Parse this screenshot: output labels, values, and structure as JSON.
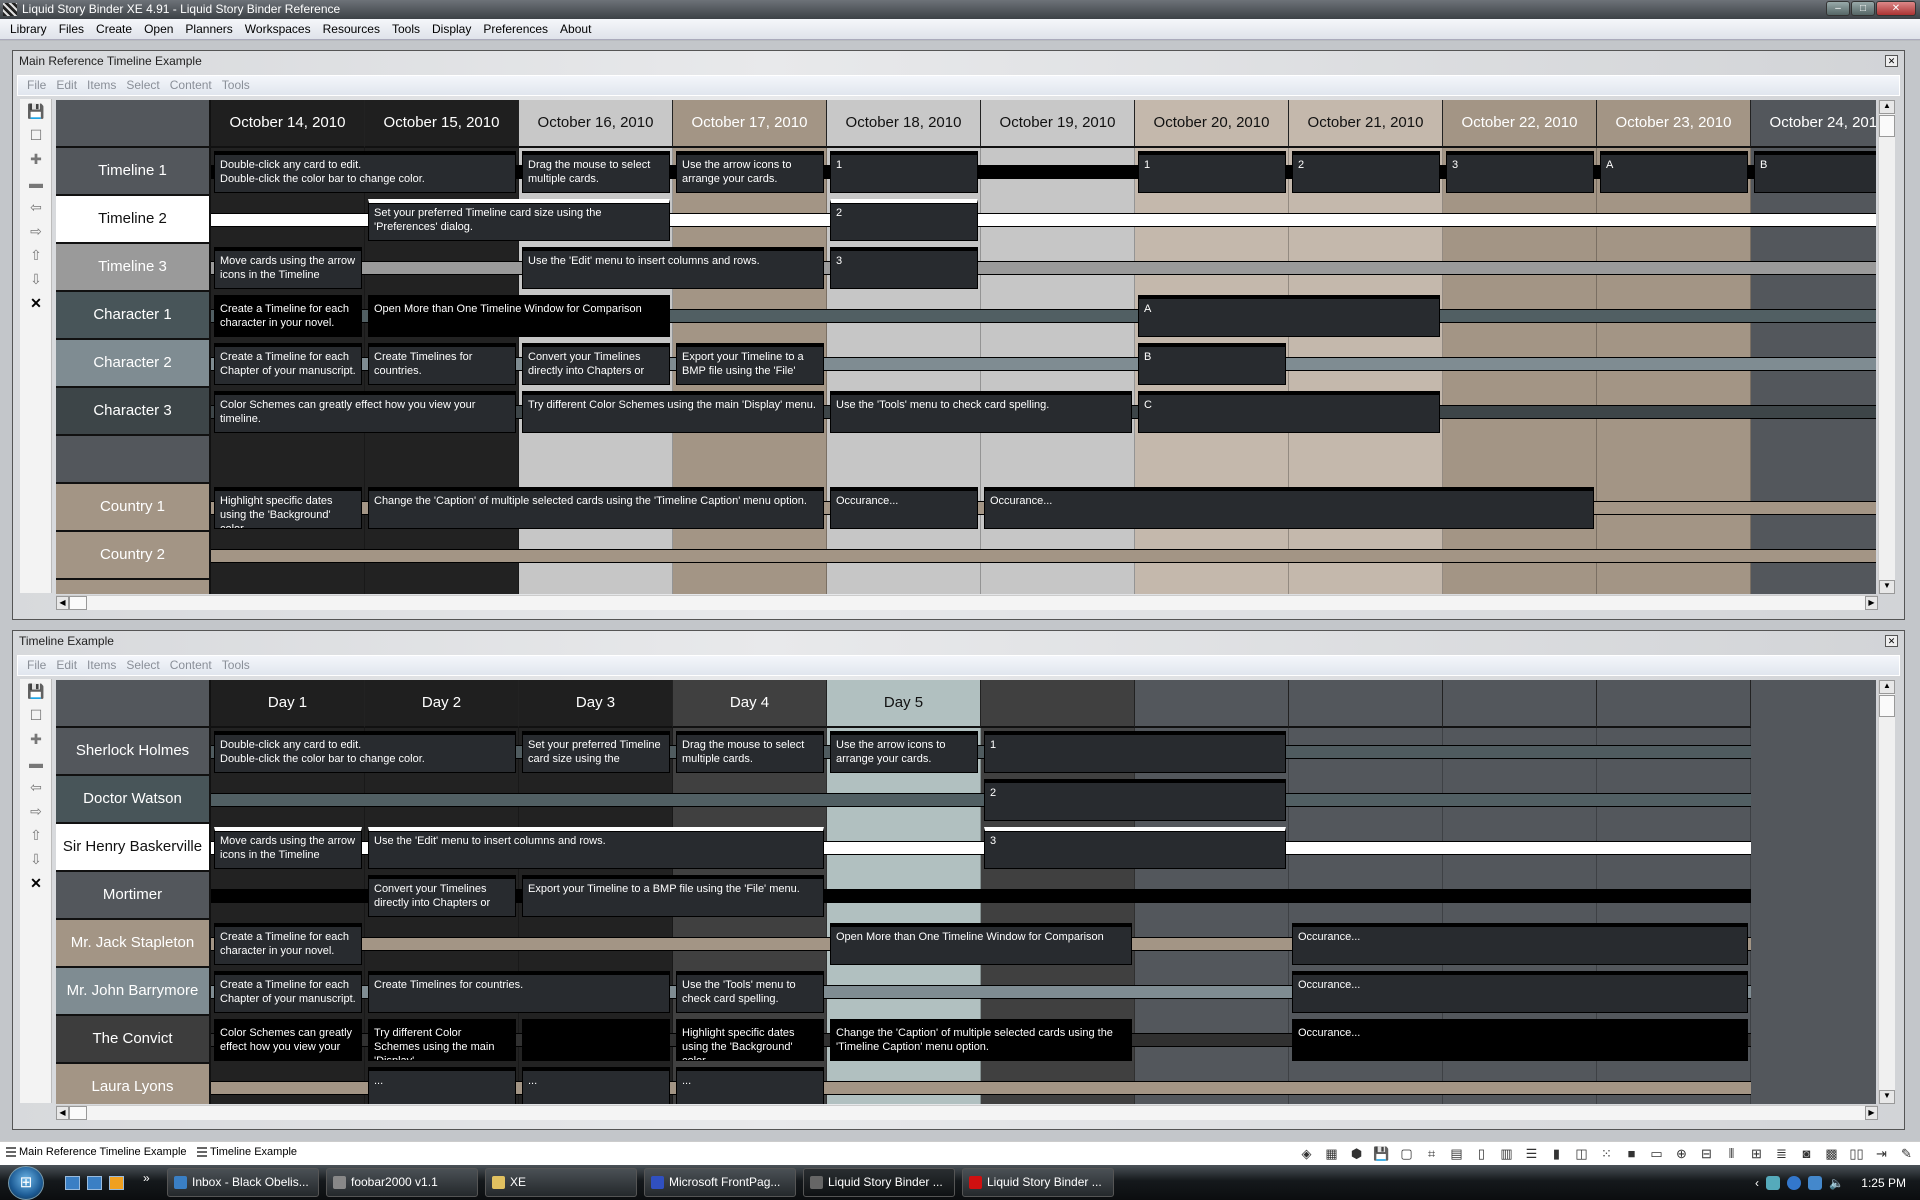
{
  "app": {
    "title": "Liquid Story Binder XE 4.91 - Liquid Story Binder Reference",
    "window_buttons": [
      "minimize",
      "maximize",
      "close"
    ]
  },
  "menubar": [
    "Library",
    "Files",
    "Create",
    "Open",
    "Planners",
    "Workspaces",
    "Resources",
    "Tools",
    "Display",
    "Preferences",
    "About"
  ],
  "toolbar_icons": [
    {
      "name": "save-icon",
      "glyph": "💾"
    },
    {
      "name": "new-card-icon",
      "glyph": "☐"
    },
    {
      "name": "add-row-icon",
      "glyph": "✚"
    },
    {
      "name": "remove-row-icon",
      "glyph": "▬"
    },
    {
      "name": "arrow-left-icon",
      "glyph": "⇦"
    },
    {
      "name": "arrow-right-icon",
      "glyph": "⇨"
    },
    {
      "name": "arrow-up-icon",
      "glyph": "⇧"
    },
    {
      "name": "arrow-down-icon",
      "glyph": "⇩"
    },
    {
      "name": "delete-icon",
      "glyph": "✕"
    }
  ],
  "windows": [
    {
      "title": "Main Reference Timeline Example",
      "menu": [
        "File",
        "Edit",
        "Items",
        "Select",
        "Content",
        "Tools"
      ],
      "columns": [
        {
          "label": "October 14, 2010",
          "bg": "#1f1f1f",
          "body": "#222222",
          "fg": "#ffffff"
        },
        {
          "label": "October 15, 2010",
          "bg": "#1f1f1f",
          "body": "#222222",
          "fg": "#ffffff"
        },
        {
          "label": "October 16, 2010",
          "bg": "#c8c8c8",
          "body": "#c6c6c6",
          "fg": "#111111"
        },
        {
          "label": "October 17, 2010",
          "bg": "#a39585",
          "body": "#a39585",
          "fg": "#ffffff"
        },
        {
          "label": "October 18, 2010",
          "bg": "#c8c8c8",
          "body": "#c6c6c6",
          "fg": "#111111"
        },
        {
          "label": "October 19, 2010",
          "bg": "#c8c8c8",
          "body": "#c6c6c6",
          "fg": "#111111"
        },
        {
          "label": "October 20, 2010",
          "bg": "#c4b8ac",
          "body": "#c4b8ac",
          "fg": "#111111"
        },
        {
          "label": "October 21, 2010",
          "bg": "#c4b8ac",
          "body": "#c4b8ac",
          "fg": "#111111"
        },
        {
          "label": "October 22, 2010",
          "bg": "#a39585",
          "body": "#a39585",
          "fg": "#ffffff"
        },
        {
          "label": "October 23, 2010",
          "bg": "#a39585",
          "body": "#a39585",
          "fg": "#ffffff"
        },
        {
          "label": "October 24, 2010",
          "bg": "#53575c",
          "body": "#53575c",
          "fg": "#ffffff"
        }
      ],
      "rows": [
        {
          "label": "Timeline 1",
          "bg": "#53575c",
          "fg": "#ffffff",
          "bar": "#000000"
        },
        {
          "label": "Timeline 2",
          "bg": "#ffffff",
          "fg": "#111111",
          "bar": "#ffffff"
        },
        {
          "label": "Timeline 3",
          "bg": "#9a9a9a",
          "fg": "#ffffff",
          "bar": "#9a9a9a"
        },
        {
          "label": "Character 1",
          "bg": "#485559",
          "fg": "#ffffff",
          "bar": "#515f63"
        },
        {
          "label": "Character 2",
          "bg": "#7f8c92",
          "fg": "#ffffff",
          "bar": "#7f8c92"
        },
        {
          "label": "Character 3",
          "bg": "#3d4548",
          "fg": "#ffffff",
          "bar": "#3d4548"
        },
        {
          "label": "",
          "bg": "#53575c",
          "fg": "#ffffff",
          "bar": ""
        },
        {
          "label": "Country 1",
          "bg": "#a39585",
          "fg": "#ffffff",
          "bar": "#a39585"
        },
        {
          "label": "Country 2",
          "bg": "#a39585",
          "fg": "#ffffff",
          "bar": "#a39585"
        },
        {
          "label": "",
          "bg": "#a39585",
          "fg": "#ffffff",
          "bar": ""
        }
      ],
      "cards": [
        {
          "row": 0,
          "col": 0,
          "span": 2,
          "text": "Double-click any card to edit.\nDouble-click the color bar to change color."
        },
        {
          "row": 0,
          "col": 2,
          "span": 1,
          "text": "Drag the mouse to select multiple cards."
        },
        {
          "row": 0,
          "col": 3,
          "span": 1,
          "text": "Use the arrow icons to arrange your cards."
        },
        {
          "row": 0,
          "col": 4,
          "span": 1,
          "text": "1"
        },
        {
          "row": 0,
          "col": 6,
          "span": 1,
          "text": "1"
        },
        {
          "row": 0,
          "col": 7,
          "span": 1,
          "text": "2"
        },
        {
          "row": 0,
          "col": 8,
          "span": 1,
          "text": "3"
        },
        {
          "row": 0,
          "col": 9,
          "span": 1,
          "text": "A"
        },
        {
          "row": 0,
          "col": 10,
          "span": 1,
          "text": "B"
        },
        {
          "row": 1,
          "col": 1,
          "span": 2,
          "text": "Set your preferred Timeline card size using the 'Preferences' dialog."
        },
        {
          "row": 1,
          "col": 4,
          "span": 1,
          "text": "2"
        },
        {
          "row": 2,
          "col": 0,
          "span": 1,
          "text": "Move cards using the arrow icons in the Timeline"
        },
        {
          "row": 2,
          "col": 2,
          "span": 2,
          "text": "Use the 'Edit' menu to insert columns and rows."
        },
        {
          "row": 2,
          "col": 4,
          "span": 1,
          "text": "3"
        },
        {
          "row": 3,
          "col": 0,
          "span": 1,
          "text": "Create a Timeline for each character in your novel.",
          "black": true
        },
        {
          "row": 3,
          "col": 1,
          "span": 2,
          "text": "Open More than One Timeline Window for Comparison",
          "black": true
        },
        {
          "row": 3,
          "col": 6,
          "span": 2,
          "text": "A"
        },
        {
          "row": 4,
          "col": 0,
          "span": 1,
          "text": "Create a Timeline for each Chapter of your manuscript."
        },
        {
          "row": 4,
          "col": 1,
          "span": 1,
          "text": "Create Timelines for countries."
        },
        {
          "row": 4,
          "col": 2,
          "span": 1,
          "text": "Convert your Timelines directly into Chapters or"
        },
        {
          "row": 4,
          "col": 3,
          "span": 1,
          "text": "Export your Timeline to a BMP file using the 'File'"
        },
        {
          "row": 4,
          "col": 6,
          "span": 1,
          "text": "B"
        },
        {
          "row": 5,
          "col": 0,
          "span": 2,
          "text": "Color Schemes can greatly effect how you view your timeline."
        },
        {
          "row": 5,
          "col": 2,
          "span": 2,
          "text": "Try different Color Schemes using the main 'Display' menu."
        },
        {
          "row": 5,
          "col": 4,
          "span": 2,
          "text": "Use the 'Tools' menu to check card spelling."
        },
        {
          "row": 5,
          "col": 6,
          "span": 2,
          "text": "C"
        },
        {
          "row": 7,
          "col": 0,
          "span": 1,
          "text": "Highlight specific dates using the 'Background' color"
        },
        {
          "row": 7,
          "col": 1,
          "span": 3,
          "text": "Change the 'Caption' of multiple selected cards using the 'Timeline Caption' menu option."
        },
        {
          "row": 7,
          "col": 4,
          "span": 1,
          "text": "Occurance..."
        },
        {
          "row": 7,
          "col": 5,
          "span": 4,
          "text": "Occurance..."
        }
      ]
    },
    {
      "title": "Timeline Example",
      "menu": [
        "File",
        "Edit",
        "Items",
        "Select",
        "Content",
        "Tools"
      ],
      "columns": [
        {
          "label": "Day 1",
          "bg": "#1f1f1f",
          "body": "#222222",
          "fg": "#ffffff"
        },
        {
          "label": "Day 2",
          "bg": "#1f1f1f",
          "body": "#222222",
          "fg": "#ffffff"
        },
        {
          "label": "Day 3",
          "bg": "#1f1f1f",
          "body": "#222222",
          "fg": "#ffffff"
        },
        {
          "label": "Day 4",
          "bg": "#404040",
          "body": "#404040",
          "fg": "#ffffff"
        },
        {
          "label": "Day 5",
          "bg": "#b1c0c0",
          "body": "#b1c0c0",
          "fg": "#111111"
        },
        {
          "label": "",
          "bg": "#404040",
          "body": "#404040",
          "fg": "#ffffff"
        },
        {
          "label": "",
          "bg": "#53575c",
          "body": "#53575c",
          "fg": "#ffffff"
        },
        {
          "label": "",
          "bg": "#53575c",
          "body": "#53575c",
          "fg": "#ffffff"
        },
        {
          "label": "",
          "bg": "#53575c",
          "body": "#53575c",
          "fg": "#ffffff"
        },
        {
          "label": "",
          "bg": "#53575c",
          "body": "#53575c",
          "fg": "#ffffff"
        }
      ],
      "rows": [
        {
          "label": "Sherlock Holmes",
          "bg": "#53575c",
          "fg": "#ffffff",
          "bar": "#4f5b5f"
        },
        {
          "label": "Doctor Watson",
          "bg": "#485559",
          "fg": "#ffffff",
          "bar": "#515f63"
        },
        {
          "label": "Sir Henry Baskerville",
          "bg": "#ffffff",
          "fg": "#111111",
          "bar": "#ffffff"
        },
        {
          "label": "Mortimer",
          "bg": "#53575c",
          "fg": "#ffffff",
          "bar": "#000000"
        },
        {
          "label": "Mr. Jack Stapleton",
          "bg": "#a39585",
          "fg": "#ffffff",
          "bar": "#a39585"
        },
        {
          "label": "Mr. John Barrymore",
          "bg": "#7f8c92",
          "fg": "#ffffff",
          "bar": "#7f8c92"
        },
        {
          "label": "The Convict",
          "bg": "#3d3d3d",
          "fg": "#ffffff",
          "bar": "#303030"
        },
        {
          "label": "Laura Lyons",
          "bg": "#a39585",
          "fg": "#ffffff",
          "bar": "#a39585"
        }
      ],
      "cards": [
        {
          "row": 0,
          "col": 0,
          "span": 2,
          "text": "Double-click any card to edit.\nDouble-click the color bar to change color."
        },
        {
          "row": 0,
          "col": 2,
          "span": 1,
          "text": "Set your preferred Timeline card size using the"
        },
        {
          "row": 0,
          "col": 3,
          "span": 1,
          "text": "Drag the mouse to select multiple cards."
        },
        {
          "row": 0,
          "col": 4,
          "span": 1,
          "text": "Use the arrow icons to arrange your cards."
        },
        {
          "row": 0,
          "col": 5,
          "span": 2,
          "text": "1"
        },
        {
          "row": 1,
          "col": 5,
          "span": 2,
          "text": "2"
        },
        {
          "row": 2,
          "col": 0,
          "span": 1,
          "text": "Move cards using the arrow icons in the Timeline"
        },
        {
          "row": 2,
          "col": 1,
          "span": 3,
          "text": "Use the 'Edit' menu to insert columns and rows."
        },
        {
          "row": 2,
          "col": 5,
          "span": 2,
          "text": "3"
        },
        {
          "row": 3,
          "col": 1,
          "span": 1,
          "text": "Convert your Timelines directly into Chapters or"
        },
        {
          "row": 3,
          "col": 2,
          "span": 2,
          "text": "Export your Timeline to a BMP file using the 'File' menu."
        },
        {
          "row": 4,
          "col": 0,
          "span": 1,
          "text": "Create a Timeline for each character in your novel."
        },
        {
          "row": 4,
          "col": 4,
          "span": 2,
          "text": "Open More than One Timeline Window for Comparison"
        },
        {
          "row": 4,
          "col": 7,
          "span": 3,
          "text": "Occurance..."
        },
        {
          "row": 5,
          "col": 0,
          "span": 1,
          "text": "Create a Timeline for each Chapter of your manuscript."
        },
        {
          "row": 5,
          "col": 1,
          "span": 2,
          "text": "Create Timelines for countries."
        },
        {
          "row": 5,
          "col": 3,
          "span": 1,
          "text": "Use the 'Tools' menu to check card spelling."
        },
        {
          "row": 5,
          "col": 7,
          "span": 3,
          "text": "Occurance..."
        },
        {
          "row": 6,
          "col": 0,
          "span": 1,
          "text": "Color Schemes can greatly effect how you view your",
          "black": true
        },
        {
          "row": 6,
          "col": 1,
          "span": 1,
          "text": "Try different Color Schemes using the main 'Display'",
          "black": true
        },
        {
          "row": 6,
          "col": 2,
          "span": 1,
          "text": "",
          "black": true
        },
        {
          "row": 6,
          "col": 3,
          "span": 1,
          "text": "Highlight specific dates using the 'Background' color",
          "black": true
        },
        {
          "row": 6,
          "col": 4,
          "span": 2,
          "text": "Change the 'Caption' of multiple selected cards using the 'Timeline Caption' menu option.",
          "black": true
        },
        {
          "row": 6,
          "col": 7,
          "span": 3,
          "text": "Occurance...",
          "black": true
        },
        {
          "row": 7,
          "col": 1,
          "span": 1,
          "text": "..."
        },
        {
          "row": 7,
          "col": 2,
          "span": 1,
          "text": "..."
        },
        {
          "row": 7,
          "col": 3,
          "span": 1,
          "text": "..."
        }
      ]
    }
  ],
  "doc_tabs": [
    "Main Reference Timeline Example",
    "Timeline Example"
  ],
  "status_icons": [
    {
      "name": "layers-icon",
      "glyph": "◈"
    },
    {
      "name": "grid-icon",
      "glyph": "▦"
    },
    {
      "name": "box-icon",
      "glyph": "⬢"
    },
    {
      "name": "save-icon",
      "glyph": "💾"
    },
    {
      "name": "square-icon",
      "glyph": "▢"
    },
    {
      "name": "select-icon",
      "glyph": "⌗"
    },
    {
      "name": "document-lines-icon",
      "glyph": "▤"
    },
    {
      "name": "page-icon",
      "glyph": "▯"
    },
    {
      "name": "table-icon",
      "glyph": "▥"
    },
    {
      "name": "list-icon",
      "glyph": "☰"
    },
    {
      "name": "book-icon",
      "glyph": "▮"
    },
    {
      "name": "columns-icon",
      "glyph": "◫"
    },
    {
      "name": "tiles-icon",
      "glyph": "⁙"
    },
    {
      "name": "image-icon",
      "glyph": "■"
    },
    {
      "name": "form-icon",
      "glyph": "▭"
    },
    {
      "name": "flow-icon",
      "glyph": "⊕"
    },
    {
      "name": "outline-icon",
      "glyph": "⊟"
    },
    {
      "name": "timeline-icon",
      "glyph": "⦀"
    },
    {
      "name": "storyboard-icon",
      "glyph": "⊞"
    },
    {
      "name": "rows-icon",
      "glyph": "≣"
    },
    {
      "name": "audio-icon",
      "glyph": "◙"
    },
    {
      "name": "film-icon",
      "glyph": "▩"
    },
    {
      "name": "split-icon",
      "glyph": "▯▯"
    },
    {
      "name": "export-icon",
      "glyph": "⇥"
    },
    {
      "name": "pen-icon",
      "glyph": "✎"
    }
  ],
  "taskbar": {
    "tasks": [
      {
        "label": "Inbox - Black Obelis...",
        "color": "#3a7fc4"
      },
      {
        "label": "foobar2000 v1.1",
        "color": "#888888"
      },
      {
        "label": "XE",
        "color": "#e0c060"
      },
      {
        "label": "Microsoft FrontPag...",
        "color": "#3050c0"
      },
      {
        "label": "Liquid Story Binder ...",
        "color": "#666666",
        "active": true
      },
      {
        "label": "Liquid Story Binder ...",
        "color": "#d01010"
      }
    ],
    "clock": "1:25 PM"
  }
}
